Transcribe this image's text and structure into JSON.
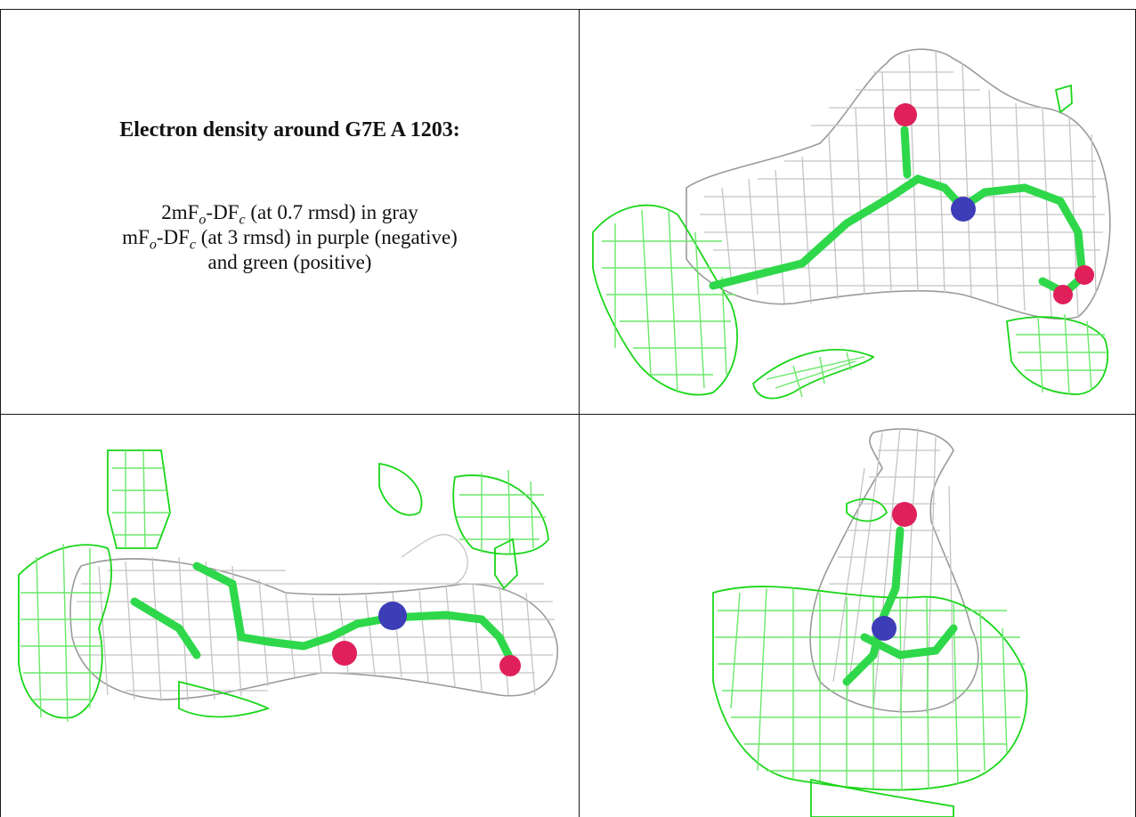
{
  "panel_text": {
    "title": "Electron density around G7E A 1203:",
    "line1_prefix": "2mF",
    "line1_sub1": "o",
    "line1_mid": "-DF",
    "line1_sub2": "c",
    "line1_suffix": " (at 0.7 rmsd) in gray",
    "line2_prefix": "mF",
    "line2_sub1": "o",
    "line2_mid": "-DF",
    "line2_sub2": "c",
    "line2_suffix": " (at 3 rmsd) in purple (negative)",
    "line3": "and green (positive)"
  },
  "colors": {
    "map_2fofc": "#9a9a9a",
    "map_positive": "#19d619",
    "carbon_bond": "#2ed84a",
    "nitrogen": "#3d3db8",
    "oxygen": "#e0205a"
  },
  "views": [
    {
      "name": "view-top-right"
    },
    {
      "name": "view-bottom-left"
    },
    {
      "name": "view-bottom-right"
    }
  ]
}
